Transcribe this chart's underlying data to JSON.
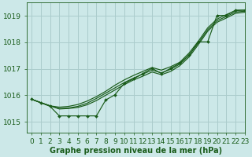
{
  "bg_color": "#cce8e8",
  "grid_color": "#aacccc",
  "line_color": "#1a5c1a",
  "marker_color": "#1a5c1a",
  "xlabel": "Graphe pression niveau de la mer (hPa)",
  "xlabel_color": "#1a5c1a",
  "ylabel_ticks": [
    1015,
    1016,
    1017,
    1018,
    1019
  ],
  "xlim": [
    -0.5,
    23
  ],
  "ylim": [
    1014.6,
    1019.5
  ],
  "series_smooth": [
    [
      1015.85,
      1015.72,
      1015.6,
      1015.55,
      1015.58,
      1015.65,
      1015.78,
      1015.95,
      1016.15,
      1016.38,
      1016.58,
      1016.75,
      1016.9,
      1017.05,
      1016.95,
      1017.08,
      1017.25,
      1017.6,
      1018.05,
      1018.55,
      1018.88,
      1019.05,
      1019.2,
      1019.22
    ],
    [
      1015.85,
      1015.72,
      1015.6,
      1015.5,
      1015.52,
      1015.58,
      1015.7,
      1015.88,
      1016.08,
      1016.28,
      1016.48,
      1016.65,
      1016.8,
      1016.95,
      1016.85,
      1016.98,
      1017.18,
      1017.52,
      1017.98,
      1018.48,
      1018.82,
      1018.98,
      1019.15,
      1019.18
    ],
    [
      1015.85,
      1015.72,
      1015.6,
      1015.48,
      1015.5,
      1015.54,
      1015.64,
      1015.8,
      1016.0,
      1016.2,
      1016.4,
      1016.58,
      1016.72,
      1016.88,
      1016.78,
      1016.9,
      1017.12,
      1017.45,
      1017.92,
      1018.42,
      1018.76,
      1018.92,
      1019.1,
      1019.14
    ]
  ],
  "series_marker": [
    [
      1015.85,
      1015.72,
      1015.58,
      1015.22,
      1015.22,
      1015.22,
      1015.22,
      1015.22,
      1015.82,
      1016.02,
      1016.45,
      1016.62,
      1016.82,
      1017.02,
      1016.82,
      1017.02,
      1017.22,
      1017.52,
      1018.02,
      1018.02,
      1019.02,
      1019.02,
      1019.22,
      1019.22
    ]
  ],
  "tick_fontsize": 6.5,
  "label_fontsize": 7,
  "xticks": [
    0,
    1,
    2,
    3,
    4,
    5,
    6,
    7,
    8,
    9,
    10,
    11,
    12,
    13,
    14,
    15,
    16,
    17,
    18,
    19,
    20,
    21,
    22,
    23
  ]
}
